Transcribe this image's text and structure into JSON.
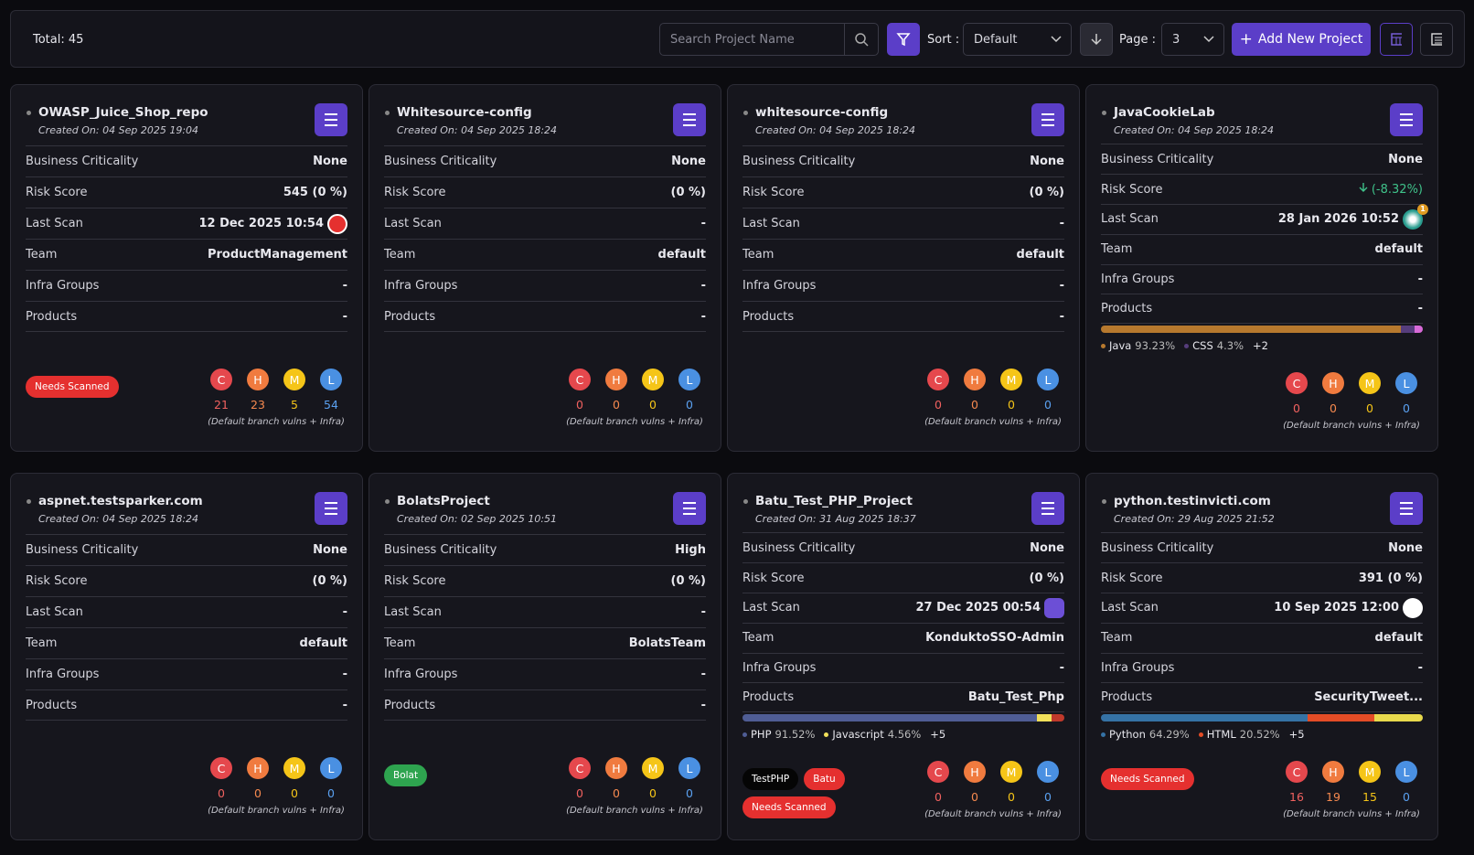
{
  "toolbar": {
    "total": "Total: 45",
    "search_placeholder": "Search Project Name",
    "sort_label": "Sort :",
    "sort_value": "Default",
    "page_label": "Page :",
    "page_value": "3",
    "add_button": "Add New Project"
  },
  "field_labels": [
    "Business Criticality",
    "Risk Score",
    "Last Scan",
    "Team",
    "Infra Groups",
    "Products"
  ],
  "severity_letters": [
    "C",
    "H",
    "M",
    "L"
  ],
  "footnote": "(Default branch vulns + Infra)",
  "projects": [
    {
      "name": "OWASP_Juice_Shop_repo",
      "created": "Created On: 04 Sep 2025 19:04",
      "values": [
        "None",
        "545 (0 %)",
        "12 Dec 2025 10:54",
        "ProductManagement",
        "-",
        "-"
      ],
      "scan_icon": "red",
      "tags": [
        {
          "text": "Needs Scanned",
          "color": "#e5302f"
        }
      ],
      "counts": [
        21,
        23,
        5,
        54
      ]
    },
    {
      "name": "Whitesource-config",
      "created": "Created On: 04 Sep 2025 18:24",
      "values": [
        "None",
        "(0 %)",
        "-",
        "default",
        "-",
        "-"
      ],
      "tags": [],
      "counts": [
        0,
        0,
        0,
        0
      ]
    },
    {
      "name": "whitesource-config",
      "created": "Created On: 04 Sep 2025 18:24",
      "values": [
        "None",
        "(0 %)",
        "-",
        "default",
        "-",
        "-"
      ],
      "tags": [],
      "counts": [
        0,
        0,
        0,
        0
      ]
    },
    {
      "name": "JavaCookieLab",
      "created": "Created On: 04 Sep 2025 18:24",
      "values": [
        "None",
        "(-8.32%)",
        "28 Jan 2026 10:52",
        "default",
        "-",
        "-"
      ],
      "trend": "down",
      "scan_icon": "teal",
      "scan_badge": "1",
      "languages": [
        {
          "name": "Java",
          "pct": "93.23%",
          "color": "#b7792e"
        },
        {
          "name": "CSS",
          "pct": "4.3%",
          "color": "#563d7c"
        }
      ],
      "languages_more": "+2",
      "rest_color": "#d86ad8",
      "tags": [],
      "counts": [
        0,
        0,
        0,
        0
      ]
    },
    {
      "name": "aspnet.testsparker.com",
      "created": "Created On: 04 Sep 2025 18:24",
      "values": [
        "None",
        "(0 %)",
        "-",
        "default",
        "-",
        "-"
      ],
      "tags": [],
      "counts": [
        0,
        0,
        0,
        0
      ]
    },
    {
      "name": "BolatsProject",
      "created": "Created On: 02 Sep 2025 10:51",
      "values": [
        "High",
        "(0 %)",
        "-",
        "BolatsTeam",
        "-",
        "-"
      ],
      "tags": [
        {
          "text": "Bolat",
          "color": "#2ea44f"
        }
      ],
      "counts": [
        0,
        0,
        0,
        0
      ]
    },
    {
      "name": "Batu_Test_PHP_Project",
      "created": "Created On: 31 Aug 2025 18:37",
      "values": [
        "None",
        "(0 %)",
        "27 Dec 2025 00:54",
        "KonduktoSSO-Admin",
        "-",
        "Batu_Test_Php"
      ],
      "scan_icon": "purple",
      "languages": [
        {
          "name": "PHP",
          "pct": "91.52%",
          "color": "#4f5d95"
        },
        {
          "name": "Javascript",
          "pct": "4.56%",
          "color": "#f1e05a"
        }
      ],
      "languages_more": "+5",
      "rest_color": "#c0392b",
      "tags": [
        {
          "text": "TestPHP",
          "color": "#050505"
        },
        {
          "text": "Batu",
          "color": "#e5302f"
        },
        {
          "text": "Needs Scanned",
          "color": "#e5302f"
        }
      ],
      "counts": [
        0,
        0,
        0,
        0
      ]
    },
    {
      "name": "python.testinvicti.com",
      "created": "Created On: 29 Aug 2025 21:52",
      "values": [
        "None",
        "391 (0 %)",
        "10 Sep 2025 12:00",
        "default",
        "-",
        "SecurityTweet..."
      ],
      "scan_icon": "white",
      "languages": [
        {
          "name": "Python",
          "pct": "64.29%",
          "color": "#3572a5"
        },
        {
          "name": "HTML",
          "pct": "20.52%",
          "color": "#e34c26"
        }
      ],
      "languages_more": "+5",
      "rest_color": "#e8d94c",
      "tags": [
        {
          "text": "Needs Scanned",
          "color": "#e5302f"
        }
      ],
      "counts": [
        16,
        19,
        15,
        0
      ]
    }
  ]
}
